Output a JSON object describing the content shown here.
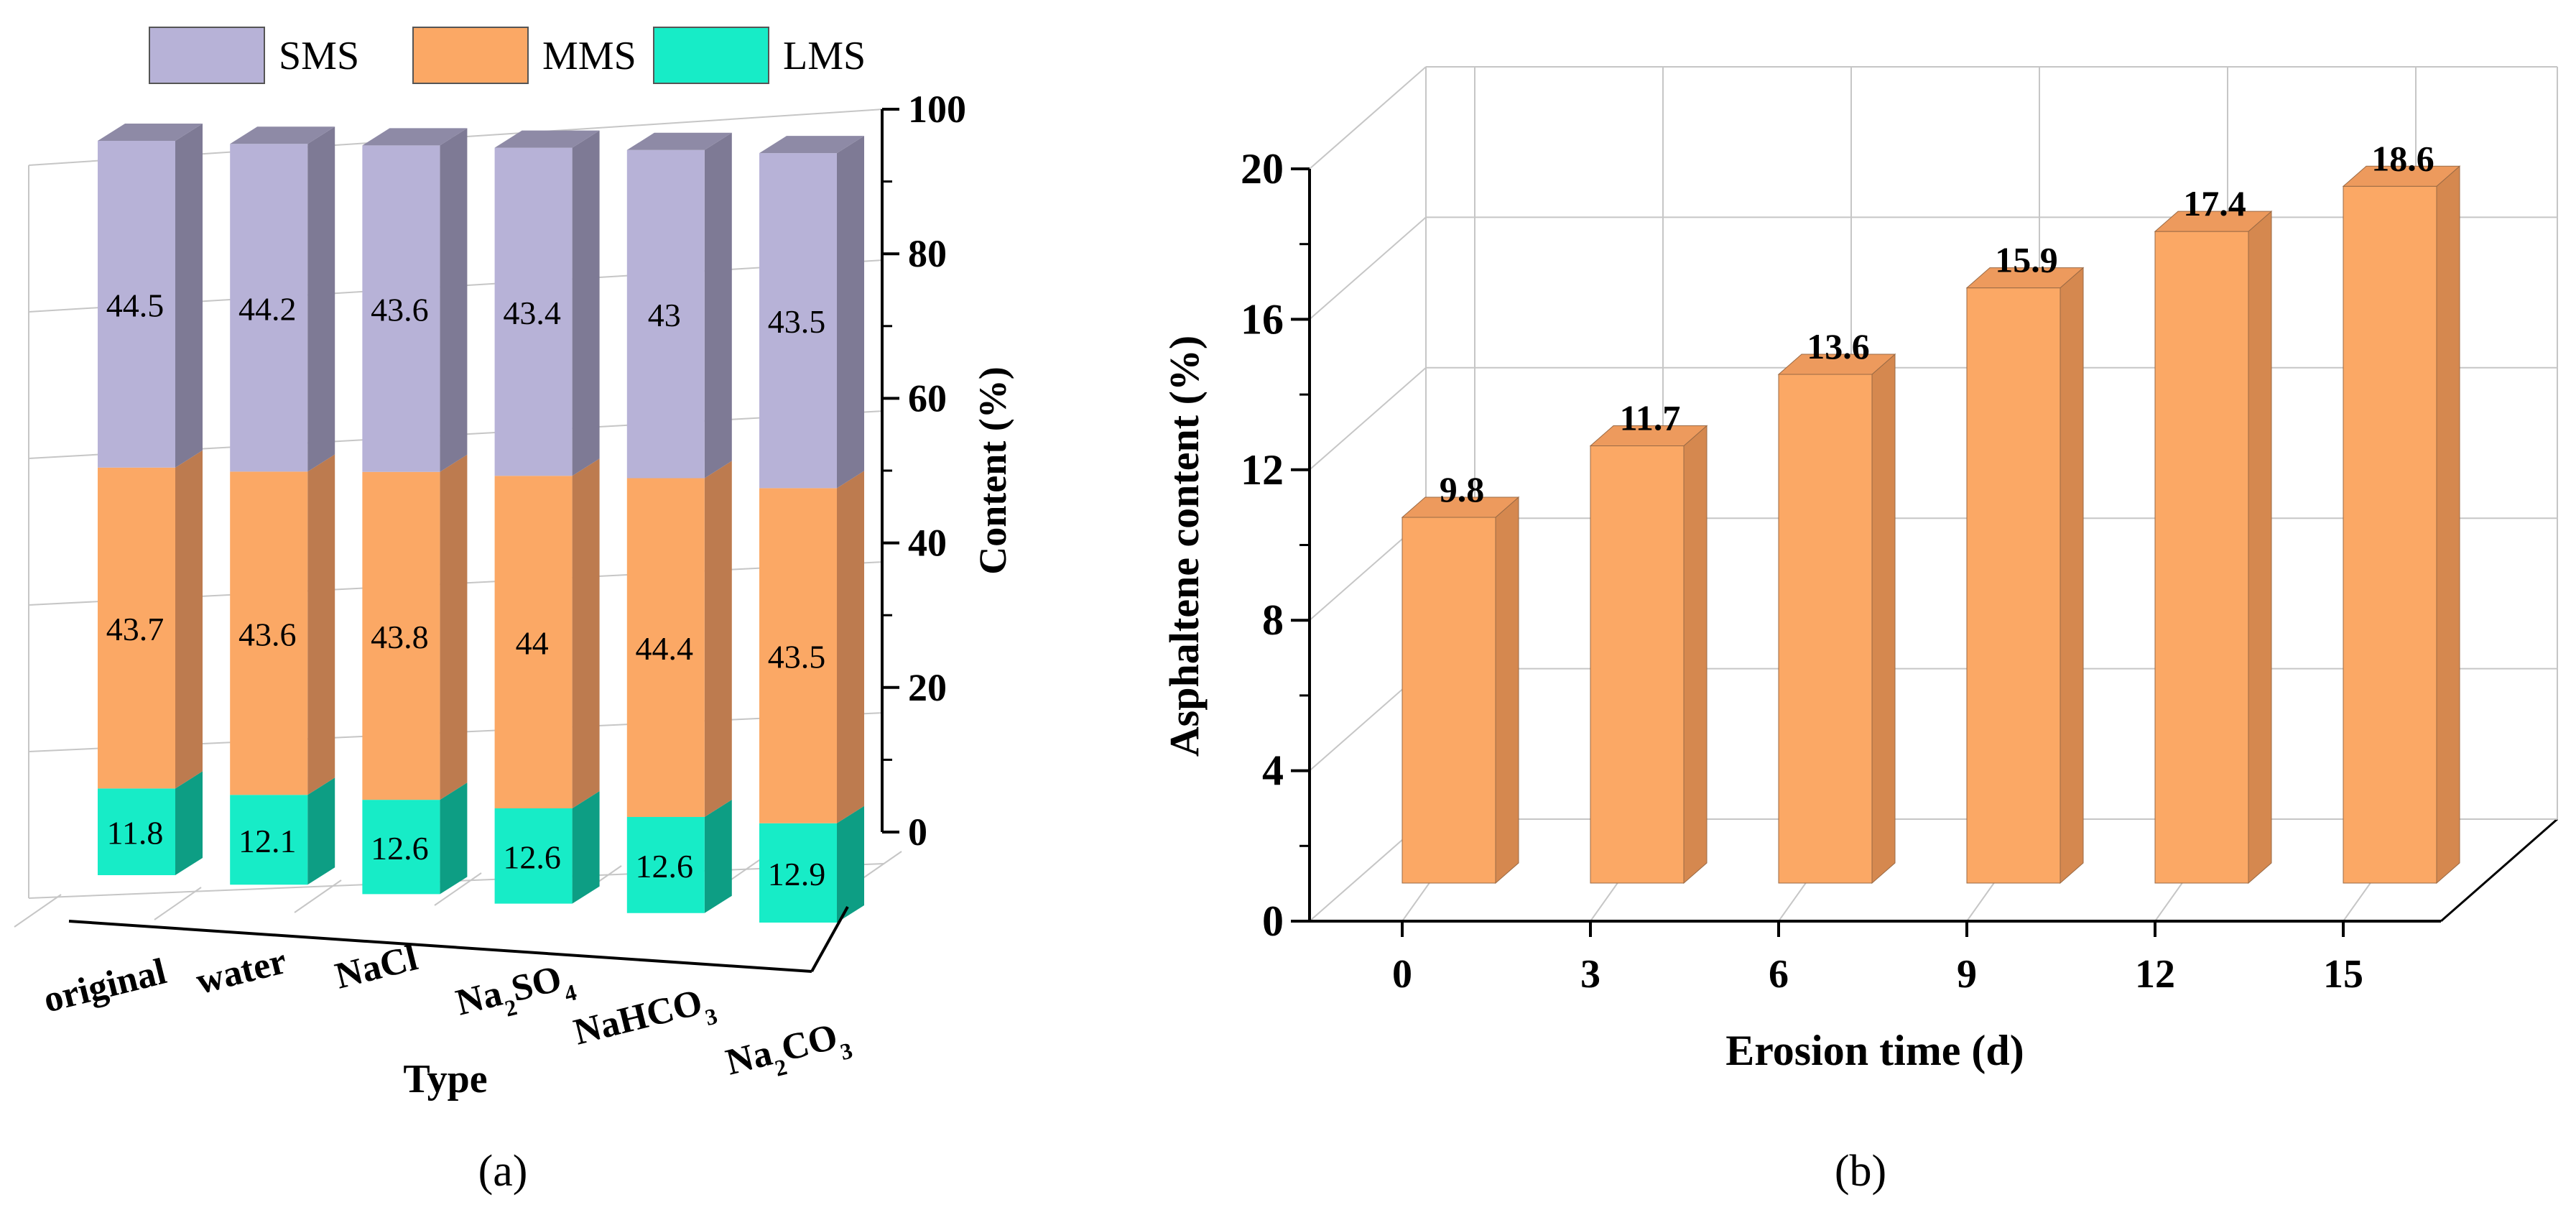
{
  "colors": {
    "sms_front": "#b7b2d7",
    "sms_side": "#7e7a95",
    "sms_top": "#8e8aa6",
    "mms_front": "#fba865",
    "mms_side": "#bd7b4f",
    "mms_top": "#d68a55",
    "lms_front": "#17ecc7",
    "lms_side": "#0d9e84",
    "lms_top": "#12c4a4",
    "b_front": "#fba865",
    "b_side": "#d5884f",
    "b_top": "#ed9a5d",
    "grid": "#c6c6c6",
    "axis": "#000000"
  },
  "chart_data": [
    {
      "type": "bar",
      "subtype": "stacked-3d",
      "panel_label": "(a)",
      "xlabel": "Type",
      "ylabel": "Content (%)",
      "ylim": [
        0,
        100
      ],
      "yticks": [
        0,
        20,
        40,
        60,
        80,
        100
      ],
      "categories": [
        "original",
        "water",
        "NaCl",
        "Na2SO4",
        "NaHCO3",
        "Na2CO3"
      ],
      "category_labels": [
        {
          "base": "original",
          "sub": ""
        },
        {
          "base": "water",
          "sub": ""
        },
        {
          "base": "NaCl",
          "sub": ""
        },
        {
          "base": "Na",
          "sub": "2",
          "base2": "SO",
          "sub2": "4"
        },
        {
          "base": "NaHCO",
          "sub": "3"
        },
        {
          "base": "Na",
          "sub": "2",
          "base2": "CO",
          "sub2": "3"
        }
      ],
      "legend": [
        "SMS",
        "MMS",
        "LMS"
      ],
      "legend_position": "top",
      "series": [
        {
          "name": "LMS",
          "values": [
            11.8,
            12.1,
            12.6,
            12.6,
            12.6,
            12.9
          ]
        },
        {
          "name": "MMS",
          "values": [
            43.7,
            43.6,
            43.8,
            44,
            44.4,
            43.5
          ]
        },
        {
          "name": "SMS",
          "values": [
            44.5,
            44.2,
            43.6,
            43.4,
            43,
            43.5
          ]
        }
      ]
    },
    {
      "type": "bar",
      "subtype": "3d",
      "panel_label": "(b)",
      "xlabel": "Erosion time (d)",
      "ylabel": "Asphaltene content (%)",
      "ylim": [
        0,
        20
      ],
      "yticks": [
        0,
        4,
        8,
        12,
        16,
        20
      ],
      "categories": [
        "0",
        "3",
        "6",
        "9",
        "12",
        "15"
      ],
      "values": [
        9.8,
        11.7,
        13.6,
        15.9,
        17.4,
        18.6
      ]
    }
  ]
}
